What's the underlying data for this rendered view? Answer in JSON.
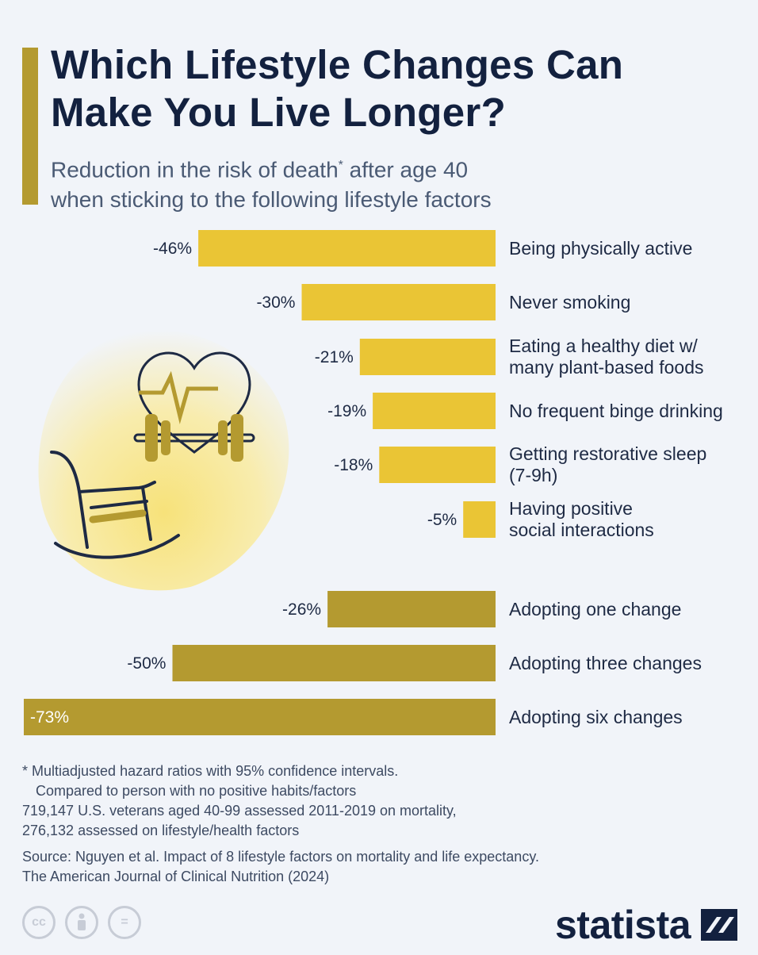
{
  "header": {
    "title_line1": "Which Lifestyle Changes Can",
    "title_line2": "Make You Live Longer?",
    "subtitle_a": "Reduction in the risk of death",
    "subtitle_star": "*",
    "subtitle_b": " after age 40",
    "subtitle_line2": "when sticking to the following lifestyle factors"
  },
  "chart_data": {
    "type": "bar",
    "orientation": "horizontal",
    "unit": "%",
    "value_range": [
      -73,
      0
    ],
    "series": [
      {
        "values": [
          {
            "label_lines": [
              "Being physically active"
            ],
            "value": -46,
            "display": "-46%",
            "color": "#eac535"
          },
          {
            "label_lines": [
              "Never smoking"
            ],
            "value": -30,
            "display": "-30%",
            "color": "#eac535"
          },
          {
            "label_lines": [
              "Eating a healthy diet w/",
              "many plant-based foods"
            ],
            "value": -21,
            "display": "-21%",
            "color": "#eac535"
          },
          {
            "label_lines": [
              "No frequent binge drinking"
            ],
            "value": -19,
            "display": "-19%",
            "color": "#eac535"
          },
          {
            "label_lines": [
              "Getting restorative sleep",
              "(7-9h)"
            ],
            "value": -18,
            "display": "-18%",
            "color": "#eac535"
          },
          {
            "label_lines": [
              "Having positive",
              "social interactions"
            ],
            "value": -5,
            "display": "-5%",
            "color": "#eac535"
          }
        ]
      },
      {
        "values": [
          {
            "label_lines": [
              "Adopting one change"
            ],
            "value": -26,
            "display": "-26%",
            "color": "#b49a30"
          },
          {
            "label_lines": [
              "Adopting three changes"
            ],
            "value": -50,
            "display": "-50%",
            "color": "#b49a30"
          },
          {
            "label_lines": [
              "Adopting six changes"
            ],
            "value": -73,
            "display": "-73%",
            "color": "#b49a30"
          }
        ]
      }
    ]
  },
  "footnote": {
    "line1": "* Multiadjusted hazard ratios with 95% confidence intervals.",
    "line2": "Compared to person with no positive habits/factors",
    "line3": "719,147 U.S. veterans aged 40-99 assessed 2011-2019 on mortality,",
    "line4": "276,132 assessed on lifestyle/health factors"
  },
  "source": {
    "line1": "Source: Nguyen et al. Impact of 8 lifestyle factors on mortality and life expectancy.",
    "line2": "The American Journal of Clinical Nutrition (2024)"
  },
  "license_icons": [
    {
      "name": "cc-icon",
      "text": "cc"
    },
    {
      "name": "attribution-icon",
      "text": ""
    },
    {
      "name": "no-derivatives-icon",
      "text": "="
    }
  ],
  "brand": "statista",
  "colors": {
    "background": "#f1f4f9",
    "accent": "#b49a30",
    "single_factor_bar": "#eac535",
    "combined_bar": "#b49a30",
    "title": "#13213f"
  }
}
